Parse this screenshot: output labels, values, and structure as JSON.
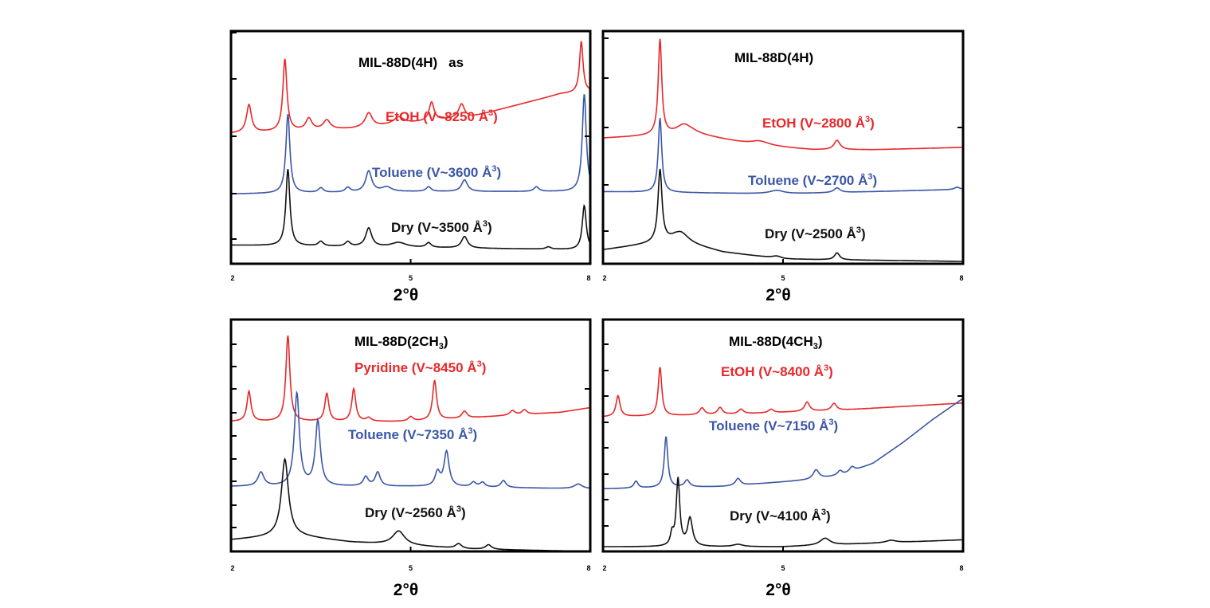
{
  "colors": {
    "red": "#e8282a",
    "blue": "#3a56a8",
    "black": "#111111"
  },
  "chart_data": [
    {
      "type": "line",
      "title": "MIL-88D(4H)",
      "title_suffix": "as",
      "xlabel": "2°θ",
      "xlim": [
        2,
        8
      ],
      "xticks": [
        "2",
        "5",
        "8"
      ],
      "ylim": [
        0,
        100
      ],
      "series": [
        {
          "name": "EtOH (V~8250 Å³)",
          "name_main": "EtOH (V~8250 Å",
          "name_sup": "3",
          "name_tail": ")",
          "color": "red",
          "baseline": [
            [
              2,
              56
            ],
            [
              4,
              58
            ],
            [
              6,
              63
            ],
            [
              7.5,
              73
            ],
            [
              8,
              74
            ]
          ],
          "peaks": [
            [
              2.3,
              12,
              0.05
            ],
            [
              2.9,
              31,
              0.04
            ],
            [
              3.3,
              5,
              0.06
            ],
            [
              3.6,
              4,
              0.07
            ],
            [
              4.3,
              6,
              0.07
            ],
            [
              4.8,
              3,
              0.1
            ],
            [
              5.35,
              8,
              0.05
            ],
            [
              5.85,
              6,
              0.06
            ],
            [
              7.85,
              22,
              0.035
            ]
          ]
        },
        {
          "name": "Toluene (V~3600 Å³)",
          "name_main": "Toluene (V~3600 Å",
          "name_sup": "3",
          "name_tail": ")",
          "color": "blue",
          "baseline": [
            [
              2,
              30
            ],
            [
              5,
              31
            ],
            [
              8,
              31
            ]
          ],
          "peaks": [
            [
              2.95,
              34,
              0.04
            ],
            [
              3.5,
              2,
              0.05
            ],
            [
              3.95,
              2,
              0.05
            ],
            [
              4.3,
              9,
              0.06
            ],
            [
              4.6,
              2,
              0.1
            ],
            [
              5.3,
              2,
              0.05
            ],
            [
              5.9,
              5,
              0.06
            ],
            [
              7.1,
              2,
              0.05
            ],
            [
              7.9,
              42,
              0.04
            ]
          ]
        },
        {
          "name": "Dry (V~3500 Å³)",
          "name_main": "Dry (V~3500 Å",
          "name_sup": "3",
          "name_tail": ")",
          "color": "black",
          "baseline": [
            [
              2,
              8
            ],
            [
              5,
              7
            ],
            [
              8,
              6
            ]
          ],
          "peaks": [
            [
              2.95,
              33,
              0.04
            ],
            [
              3.5,
              2,
              0.05
            ],
            [
              3.95,
              2,
              0.05
            ],
            [
              4.3,
              8,
              0.06
            ],
            [
              4.8,
              2,
              0.15
            ],
            [
              5.3,
              2,
              0.05
            ],
            [
              5.9,
              5,
              0.06
            ],
            [
              7.3,
              1,
              0.05
            ],
            [
              7.9,
              19,
              0.04
            ]
          ]
        }
      ]
    },
    {
      "type": "line",
      "title": "MIL-88D(4H)",
      "title_suffix": "",
      "xlabel": "2°θ",
      "xlim": [
        2,
        8
      ],
      "xticks": [
        "2",
        "5",
        "8"
      ],
      "ylim": [
        0,
        100
      ],
      "series": [
        {
          "name": "EtOH (V~2800 Å³)",
          "name_main": "EtOH (V~2800 Å",
          "name_sup": "3",
          "name_tail": ")",
          "color": "red",
          "baseline": [
            [
              2,
              54
            ],
            [
              2.8,
              55
            ],
            [
              3.5,
              56
            ],
            [
              4.5,
              51
            ],
            [
              5.5,
              49
            ],
            [
              6.5,
              49
            ],
            [
              8,
              50
            ]
          ],
          "peaks": [
            [
              2.95,
              41,
              0.035
            ],
            [
              3.35,
              4,
              0.15
            ],
            [
              4.6,
              2,
              0.2
            ],
            [
              5.9,
              4,
              0.06
            ]
          ]
        },
        {
          "name": "Toluene (V~2700 Å³)",
          "name_main": "Toluene (V~2700 Å",
          "name_sup": "3",
          "name_tail": ")",
          "color": "blue",
          "baseline": [
            [
              2,
              31
            ],
            [
              5,
              30
            ],
            [
              8,
              32
            ]
          ],
          "peaks": [
            [
              2.95,
              32,
              0.035
            ],
            [
              4.9,
              1.5,
              0.15
            ],
            [
              5.9,
              2,
              0.06
            ],
            [
              7.9,
              1,
              0.05
            ]
          ]
        },
        {
          "name": "Dry (V~2500 Å³)",
          "name_main": "Dry (V~2500  Å",
          "name_sup": "3",
          "name_tail": ")",
          "color": "black",
          "baseline": [
            [
              2,
              6
            ],
            [
              3.2,
              10
            ],
            [
              4,
              5
            ],
            [
              5,
              2
            ],
            [
              8,
              1
            ]
          ],
          "peaks": [
            [
              2.95,
              31,
              0.04
            ],
            [
              3.3,
              4,
              0.15
            ],
            [
              4.9,
              1,
              0.1
            ],
            [
              5.9,
              3,
              0.05
            ]
          ]
        }
      ]
    },
    {
      "type": "line",
      "title": "MIL-88D(2CH",
      "title_sub": "3",
      "title_tail": ")",
      "xlabel": "2°θ",
      "xlim": [
        2,
        8
      ],
      "xticks": [
        "2",
        "5",
        "8"
      ],
      "ylim": [
        0,
        100
      ],
      "series": [
        {
          "name": "Pyridine (V~8450 Å³)",
          "name_main": "Pyridine (V~8450 Å",
          "name_sup": "3",
          "name_tail": ")",
          "color": "red",
          "baseline": [
            [
              2,
              56
            ],
            [
              5,
              56
            ],
            [
              7.5,
              60
            ],
            [
              8,
              62
            ]
          ],
          "peaks": [
            [
              2.3,
              13,
              0.04
            ],
            [
              2.95,
              37,
              0.04
            ],
            [
              3.6,
              12,
              0.04
            ],
            [
              4.05,
              14,
              0.04
            ],
            [
              4.3,
              1.5,
              0.05
            ],
            [
              5.0,
              2,
              0.05
            ],
            [
              5.4,
              17,
              0.04
            ],
            [
              5.9,
              3,
              0.05
            ],
            [
              6.7,
              2,
              0.05
            ],
            [
              6.9,
              2,
              0.05
            ]
          ]
        },
        {
          "name": "Toluene (V~7350 Å³)",
          "name_main": "Toluene (V~7350  Å",
          "name_sup": "3",
          "name_tail": ")",
          "color": "blue",
          "baseline": [
            [
              2,
              28
            ],
            [
              5,
              28
            ],
            [
              8,
              27
            ]
          ],
          "peaks": [
            [
              2.5,
              6,
              0.06
            ],
            [
              3.1,
              40,
              0.05
            ],
            [
              3.45,
              28,
              0.05
            ],
            [
              4.25,
              4,
              0.05
            ],
            [
              4.45,
              6,
              0.05
            ],
            [
              5.45,
              6,
              0.05
            ],
            [
              5.6,
              15,
              0.05
            ],
            [
              6.05,
              2,
              0.05
            ],
            [
              6.2,
              2,
              0.05
            ],
            [
              6.55,
              3,
              0.05
            ],
            [
              7.8,
              2,
              0.08
            ]
          ]
        },
        {
          "name": "Dry (V~2560 Å³)",
          "name_main": "Dry (V~2560  Å",
          "name_sup": "3",
          "name_tail": ")",
          "color": "black",
          "baseline": [
            [
              2,
              5
            ],
            [
              3,
              7
            ],
            [
              4,
              4
            ],
            [
              6,
              1
            ],
            [
              8,
              0
            ]
          ],
          "peaks": [
            [
              2.9,
              33,
              0.07
            ],
            [
              4.8,
              6,
              0.12
            ],
            [
              5.8,
              2,
              0.06
            ],
            [
              6.3,
              2,
              0.06
            ]
          ]
        }
      ]
    },
    {
      "type": "line",
      "title": "MIL-88D(4CH",
      "title_sub": "3",
      "title_tail": ")",
      "xlabel": "2°θ",
      "xlim": [
        2,
        8
      ],
      "xticks": [
        "2",
        "5",
        "8"
      ],
      "ylim": [
        0,
        100
      ],
      "series": [
        {
          "name": "EtOH (V~8400 Å³)",
          "name_main": "EtOH (V~8400 Å",
          "name_sup": "3",
          "name_tail": ")",
          "color": "red",
          "baseline": [
            [
              2,
              58
            ],
            [
              4,
              59
            ],
            [
              6,
              61
            ],
            [
              8,
              64
            ]
          ],
          "peaks": [
            [
              2.25,
              9,
              0.04
            ],
            [
              2.95,
              21,
              0.035
            ],
            [
              3.65,
              3,
              0.05
            ],
            [
              3.95,
              3,
              0.05
            ],
            [
              4.3,
              2,
              0.05
            ],
            [
              4.8,
              1.5,
              0.05
            ],
            [
              5.4,
              4,
              0.05
            ],
            [
              5.85,
              3,
              0.05
            ]
          ]
        },
        {
          "name": "Toluene (V~7150 Å³)",
          "name_main": "Toluene (V~7150 Å",
          "name_sup": "3",
          "name_tail": ")",
          "color": "blue",
          "baseline": [
            [
              2,
              27
            ],
            [
              4,
              28
            ],
            [
              5.5,
              31
            ],
            [
              6,
              33
            ],
            [
              6.5,
              38
            ],
            [
              7,
              47
            ],
            [
              7.5,
              57
            ],
            [
              8,
              66
            ]
          ],
          "peaks": [
            [
              2.55,
              3,
              0.04
            ],
            [
              3.05,
              22,
              0.035
            ],
            [
              3.4,
              3,
              0.05
            ],
            [
              4.25,
              3,
              0.05
            ],
            [
              5.55,
              4,
              0.06
            ],
            [
              5.95,
              2,
              0.05
            ],
            [
              6.15,
              2,
              0.05
            ]
          ]
        },
        {
          "name": "Dry (V~4100 Å³)",
          "name_main": "Dry (V~4100 Å",
          "name_sup": "3",
          "name_tail": ")",
          "color": "black",
          "baseline": [
            [
              2,
              2
            ],
            [
              5,
              2
            ],
            [
              6,
              3
            ],
            [
              8,
              5
            ]
          ],
          "peaks": [
            [
              3.15,
              5,
              0.03
            ],
            [
              3.25,
              29,
              0.035
            ],
            [
              3.45,
              12,
              0.05
            ],
            [
              4.25,
              1,
              0.1
            ],
            [
              5.7,
              3,
              0.1
            ],
            [
              6.8,
              1,
              0.1
            ]
          ]
        }
      ]
    }
  ]
}
